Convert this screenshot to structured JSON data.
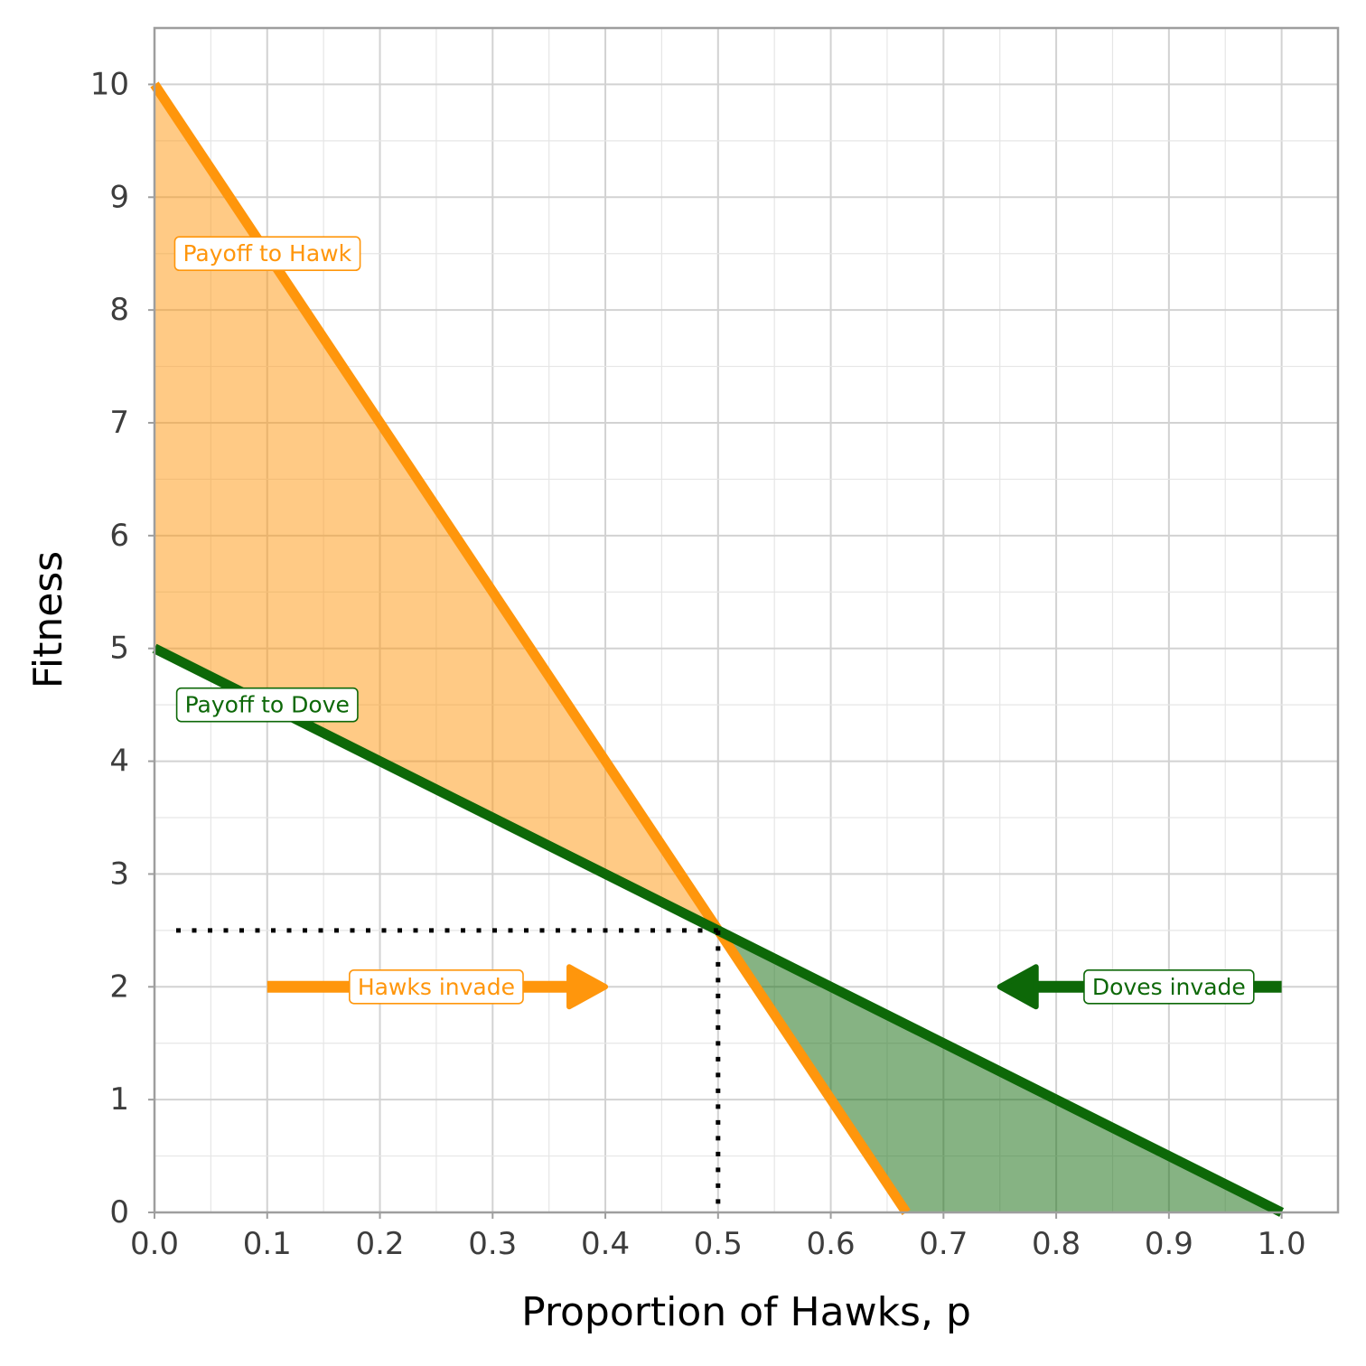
{
  "chart_data": {
    "type": "line",
    "title": "",
    "xlabel": "Proportion of Hawks, p",
    "ylabel": "Fitness",
    "xlim": [
      0,
      1.05
    ],
    "ylim": [
      0,
      10.5
    ],
    "x_ticks": [
      "0.0",
      "0.1",
      "0.2",
      "0.3",
      "0.4",
      "0.5",
      "0.6",
      "0.7",
      "0.8",
      "0.9",
      "1.0"
    ],
    "y_ticks": [
      "0",
      "1",
      "2",
      "3",
      "4",
      "5",
      "6",
      "7",
      "8",
      "9",
      "10"
    ],
    "grid": true,
    "series": [
      {
        "name": "Payoff to Hawk",
        "color": "#ff960c",
        "x": [
          0,
          0.667
        ],
        "y": [
          10,
          0
        ]
      },
      {
        "name": "Payoff to Dove",
        "color": "#0d6808",
        "x": [
          0,
          1
        ],
        "y": [
          5,
          0
        ]
      }
    ],
    "shaded_regions": [
      {
        "between": [
          "Payoff to Hawk",
          "Payoff to Dove"
        ],
        "x_range": [
          0,
          0.5
        ],
        "color": "#ff960c",
        "opacity": 0.5
      },
      {
        "between": [
          "Payoff to Dove",
          "Payoff to Hawk"
        ],
        "x_range": [
          0.5,
          1
        ],
        "color": "#0d6808",
        "opacity": 0.5
      }
    ],
    "equilibrium": {
      "x": 0.5,
      "y": 2.5,
      "style": "dotted"
    },
    "annotations": [
      {
        "text": "Payoff to Hawk",
        "x": 0.1,
        "y": 8.5,
        "color": "#ff960c"
      },
      {
        "text": "Payoff to Dove",
        "x": 0.1,
        "y": 4.5,
        "color": "#0d6808"
      },
      {
        "text": "Hawks invade",
        "x": 0.25,
        "y": 2,
        "color": "#ff960c"
      },
      {
        "text": "Doves invade",
        "x": 0.9,
        "y": 2,
        "color": "#0d6808"
      }
    ],
    "arrows": [
      {
        "from": [
          0.1,
          2
        ],
        "to": [
          0.4,
          2
        ],
        "color": "#ff960c"
      },
      {
        "from": [
          1.0,
          2
        ],
        "to": [
          0.75,
          2
        ],
        "color": "#0d6808"
      }
    ]
  }
}
